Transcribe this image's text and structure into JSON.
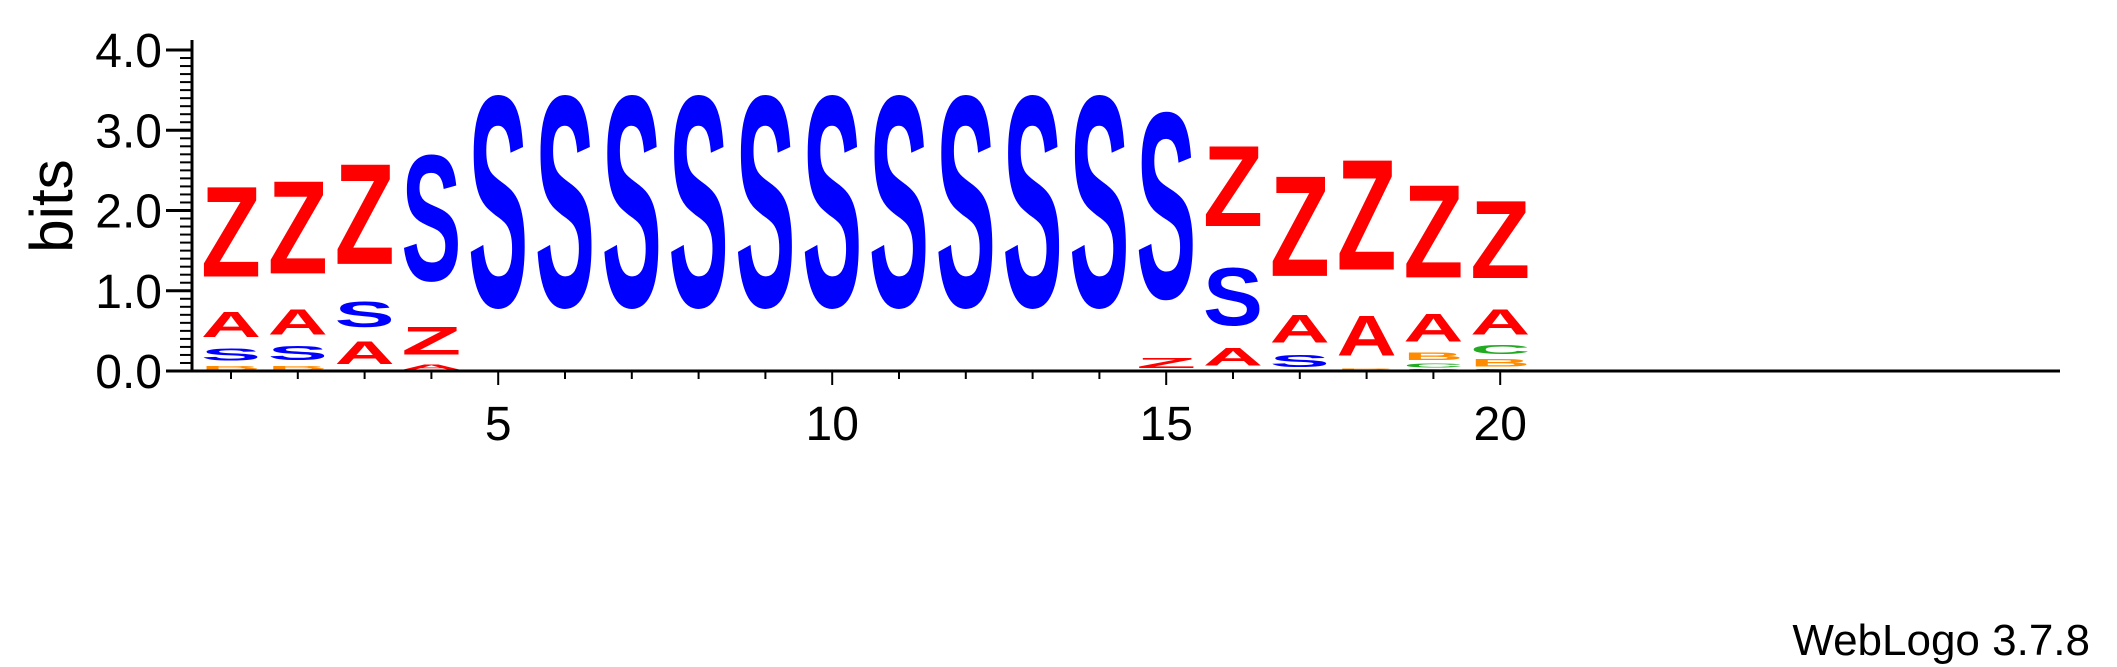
{
  "chart_data": {
    "type": "sequence-logo",
    "ylabel": "bits",
    "ylim": [
      0,
      4.0
    ],
    "yticks": [
      "0.0",
      "1.0",
      "2.0",
      "3.0",
      "4.0"
    ],
    "xticks": [
      {
        "position": 5,
        "label": "5"
      },
      {
        "position": 10,
        "label": "10"
      },
      {
        "position": 15,
        "label": "15"
      },
      {
        "position": 20,
        "label": "20"
      }
    ],
    "positions": [
      {
        "pos": 1,
        "stack": [
          {
            "letter": "B",
            "bits": 0.08
          },
          {
            "letter": "S",
            "bits": 0.25
          },
          {
            "letter": "A",
            "bits": 0.5
          },
          {
            "letter": "Z",
            "bits": 1.8
          }
        ]
      },
      {
        "pos": 2,
        "stack": [
          {
            "letter": "B",
            "bits": 0.08
          },
          {
            "letter": "S",
            "bits": 0.28
          },
          {
            "letter": "A",
            "bits": 0.5
          },
          {
            "letter": "Z",
            "bits": 1.85
          }
        ]
      },
      {
        "pos": 3,
        "stack": [
          {
            "letter": "A",
            "bits": 0.45
          },
          {
            "letter": "S",
            "bits": 0.5
          },
          {
            "letter": "Z",
            "bits": 2.0
          }
        ]
      },
      {
        "pos": 4,
        "stack": [
          {
            "letter": "A",
            "bits": 0.1
          },
          {
            "letter": "Z",
            "bits": 0.55
          },
          {
            "letter": "S",
            "bits": 2.5
          }
        ]
      },
      {
        "pos": 5,
        "stack": [
          {
            "letter": "S",
            "bits": 4.2
          }
        ]
      },
      {
        "pos": 6,
        "stack": [
          {
            "letter": "S",
            "bits": 4.2
          }
        ]
      },
      {
        "pos": 7,
        "stack": [
          {
            "letter": "S",
            "bits": 4.2
          }
        ]
      },
      {
        "pos": 8,
        "stack": [
          {
            "letter": "S",
            "bits": 4.2
          }
        ]
      },
      {
        "pos": 9,
        "stack": [
          {
            "letter": "S",
            "bits": 4.2
          }
        ]
      },
      {
        "pos": 10,
        "stack": [
          {
            "letter": "S",
            "bits": 4.2
          }
        ]
      },
      {
        "pos": 11,
        "stack": [
          {
            "letter": "S",
            "bits": 4.2
          }
        ]
      },
      {
        "pos": 12,
        "stack": [
          {
            "letter": "S",
            "bits": 4.2
          }
        ]
      },
      {
        "pos": 13,
        "stack": [
          {
            "letter": "S",
            "bits": 4.2
          }
        ]
      },
      {
        "pos": 14,
        "stack": [
          {
            "letter": "S",
            "bits": 4.2
          }
        ]
      },
      {
        "pos": 15,
        "stack": [
          {
            "letter": "Z",
            "bits": 0.2
          },
          {
            "letter": "S",
            "bits": 3.7
          }
        ]
      },
      {
        "pos": 16,
        "stack": [
          {
            "letter": "A",
            "bits": 0.35
          },
          {
            "letter": "S",
            "bits": 1.15
          },
          {
            "letter": "Z",
            "bits": 1.6
          }
        ]
      },
      {
        "pos": 17,
        "stack": [
          {
            "letter": "S",
            "bits": 0.25
          },
          {
            "letter": "A",
            "bits": 0.55
          },
          {
            "letter": "Z",
            "bits": 2.0
          }
        ]
      },
      {
        "pos": 18,
        "stack": [
          {
            "letter": "B",
            "bits": 0.04
          },
          {
            "letter": "A",
            "bits": 0.8
          },
          {
            "letter": "Z",
            "bits": 2.2
          }
        ]
      },
      {
        "pos": 19,
        "stack": [
          {
            "letter": "S",
            "bits": 0.03
          },
          {
            "letter": "C",
            "bits": 0.08
          },
          {
            "letter": "B",
            "bits": 0.15
          },
          {
            "letter": "A",
            "bits": 0.55
          },
          {
            "letter": "Z",
            "bits": 1.85
          }
        ]
      },
      {
        "pos": 20,
        "stack": [
          {
            "letter": "S",
            "bits": 0.03
          },
          {
            "letter": "B",
            "bits": 0.15
          },
          {
            "letter": "C",
            "bits": 0.18
          },
          {
            "letter": "A",
            "bits": 0.5
          },
          {
            "letter": "Z",
            "bits": 1.55
          }
        ]
      }
    ],
    "colors": {
      "A": "#ff0000",
      "Z": "#ff0000",
      "S": "#0000ff",
      "B": "#ff8c00",
      "C": "#22aa22"
    }
  },
  "footer": {
    "software_label": "WebLogo 3.7.8"
  }
}
